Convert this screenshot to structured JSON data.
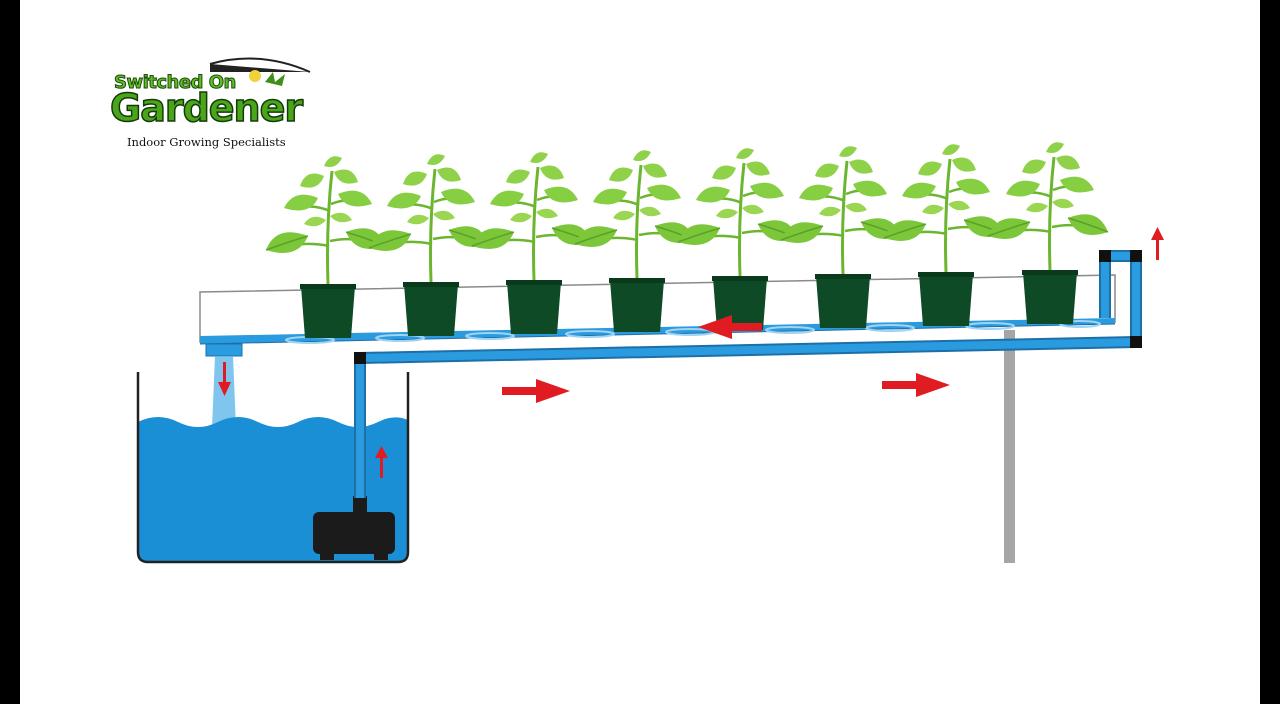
{
  "logo": {
    "brand_top": "Switched On",
    "brand_main": "Gardener",
    "tagline": "Indoor Growing Specialists"
  },
  "colors": {
    "water": "#1a8fd6",
    "pipe": "#2b9be0",
    "leaf": "#7cc63a",
    "pot": "#0f4a26",
    "arrow": "#e11b22",
    "pump": "#1b1b1b",
    "stand": "#a6a6a6"
  },
  "diagram": {
    "components": [
      "reservoir",
      "water-pump",
      "supply-pipe",
      "grow-channel",
      "plant-pot",
      "return-drain",
      "stand-leg"
    ],
    "plant_count": 8,
    "flow_arrows": [
      "up",
      "right",
      "right",
      "up",
      "left",
      "down"
    ]
  }
}
